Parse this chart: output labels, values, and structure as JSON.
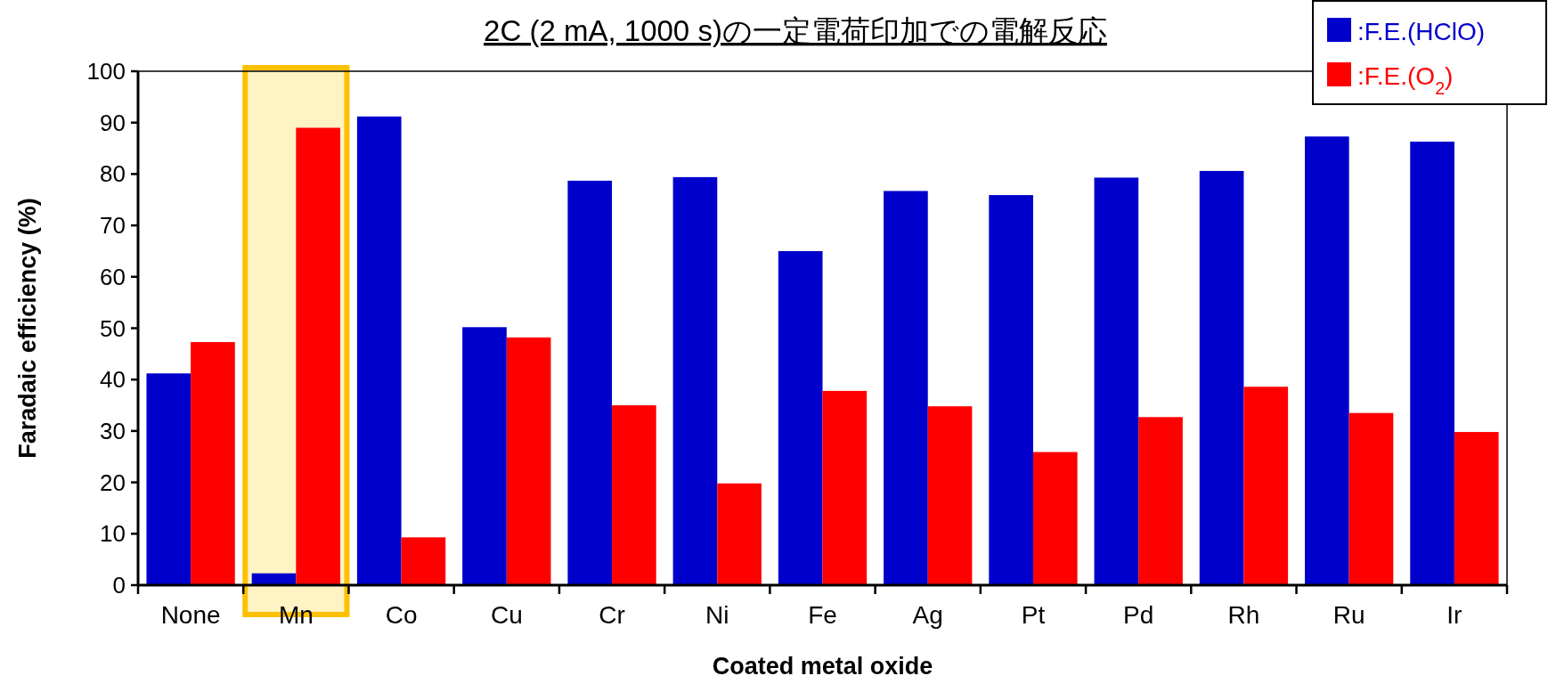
{
  "chart_data": {
    "type": "bar",
    "title": "2C (2 mA, 1000 s)の一定電荷印加での電解反応",
    "xlabel": "Coated metal oxide",
    "ylabel": "Faradaic efficiency (%)",
    "categories": [
      "None",
      "Mn",
      "Co",
      "Cu",
      "Cr",
      "Ni",
      "Fe",
      "Ag",
      "Pt",
      "Pd",
      "Rh",
      "Ru",
      "Ir"
    ],
    "series": [
      {
        "name": ":F.E.(HClO)",
        "color": "#0000cc",
        "values": [
          41.2,
          2.3,
          91.2,
          50.2,
          78.7,
          79.4,
          65.0,
          76.7,
          75.9,
          79.3,
          80.6,
          87.3,
          86.3
        ]
      },
      {
        "name": ":F.E.(O$_{2}$)",
        "color": "#ff0000",
        "values": [
          47.3,
          89.0,
          9.3,
          48.2,
          35.0,
          19.8,
          37.8,
          34.8,
          25.9,
          32.7,
          38.6,
          33.5,
          29.8
        ]
      }
    ],
    "ylim": [
      0,
      100
    ],
    "yticks": [
      0,
      10,
      20,
      30,
      40,
      50,
      60,
      70,
      80,
      90,
      100
    ],
    "bands": [
      {
        "axis": "x",
        "from": "Mn",
        "to": "Mn",
        "color": "#ffc000"
      }
    ],
    "legend": "top right",
    "grid": false
  }
}
